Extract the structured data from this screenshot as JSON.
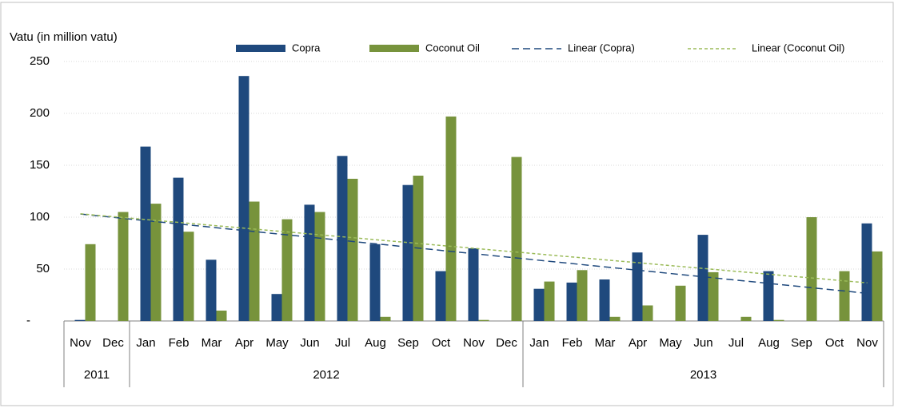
{
  "chart_data": {
    "type": "bar",
    "y_axis_label": "Vatu (in million vatu)",
    "categories": [
      "Nov",
      "Dec",
      "Jan",
      "Feb",
      "Mar",
      "Apr",
      "May",
      "Jun",
      "Jul",
      "Aug",
      "Sep",
      "Oct",
      "Nov",
      "Dec",
      "Jan",
      "Feb",
      "Mar",
      "Apr",
      "May",
      "Jun",
      "Jul",
      "Aug",
      "Sep",
      "Oct",
      "Nov"
    ],
    "groups": [
      {
        "label": "2011",
        "span": 2
      },
      {
        "label": "2012",
        "span": 12
      },
      {
        "label": "2013",
        "span": 11
      }
    ],
    "series": [
      {
        "name": "Copra",
        "color": "#1f497d",
        "values": [
          1,
          0,
          168,
          138,
          59,
          236,
          26,
          112,
          159,
          74,
          131,
          48,
          70,
          0,
          31,
          37,
          40,
          66,
          0,
          83,
          0,
          48,
          0,
          0,
          94
        ]
      },
      {
        "name": "Coconut Oil",
        "color": "#77933c",
        "values": [
          74,
          105,
          113,
          86,
          10,
          115,
          98,
          105,
          137,
          4,
          140,
          197,
          1,
          158,
          38,
          49,
          4,
          15,
          34,
          47,
          4,
          1,
          100,
          48,
          67
        ]
      }
    ],
    "trendlines": [
      {
        "name": "Linear (Copra)",
        "series": 0,
        "color": "#1f497d",
        "dash": "9 5"
      },
      {
        "name": "Linear (Coconut Oil)",
        "series": 1,
        "color": "#9bbb59",
        "dash": "4 3"
      }
    ],
    "ylim": [
      0,
      250
    ],
    "yticks": [
      {
        "value": 0,
        "label": "-"
      },
      50,
      100,
      150,
      200,
      250
    ],
    "grid": true
  }
}
